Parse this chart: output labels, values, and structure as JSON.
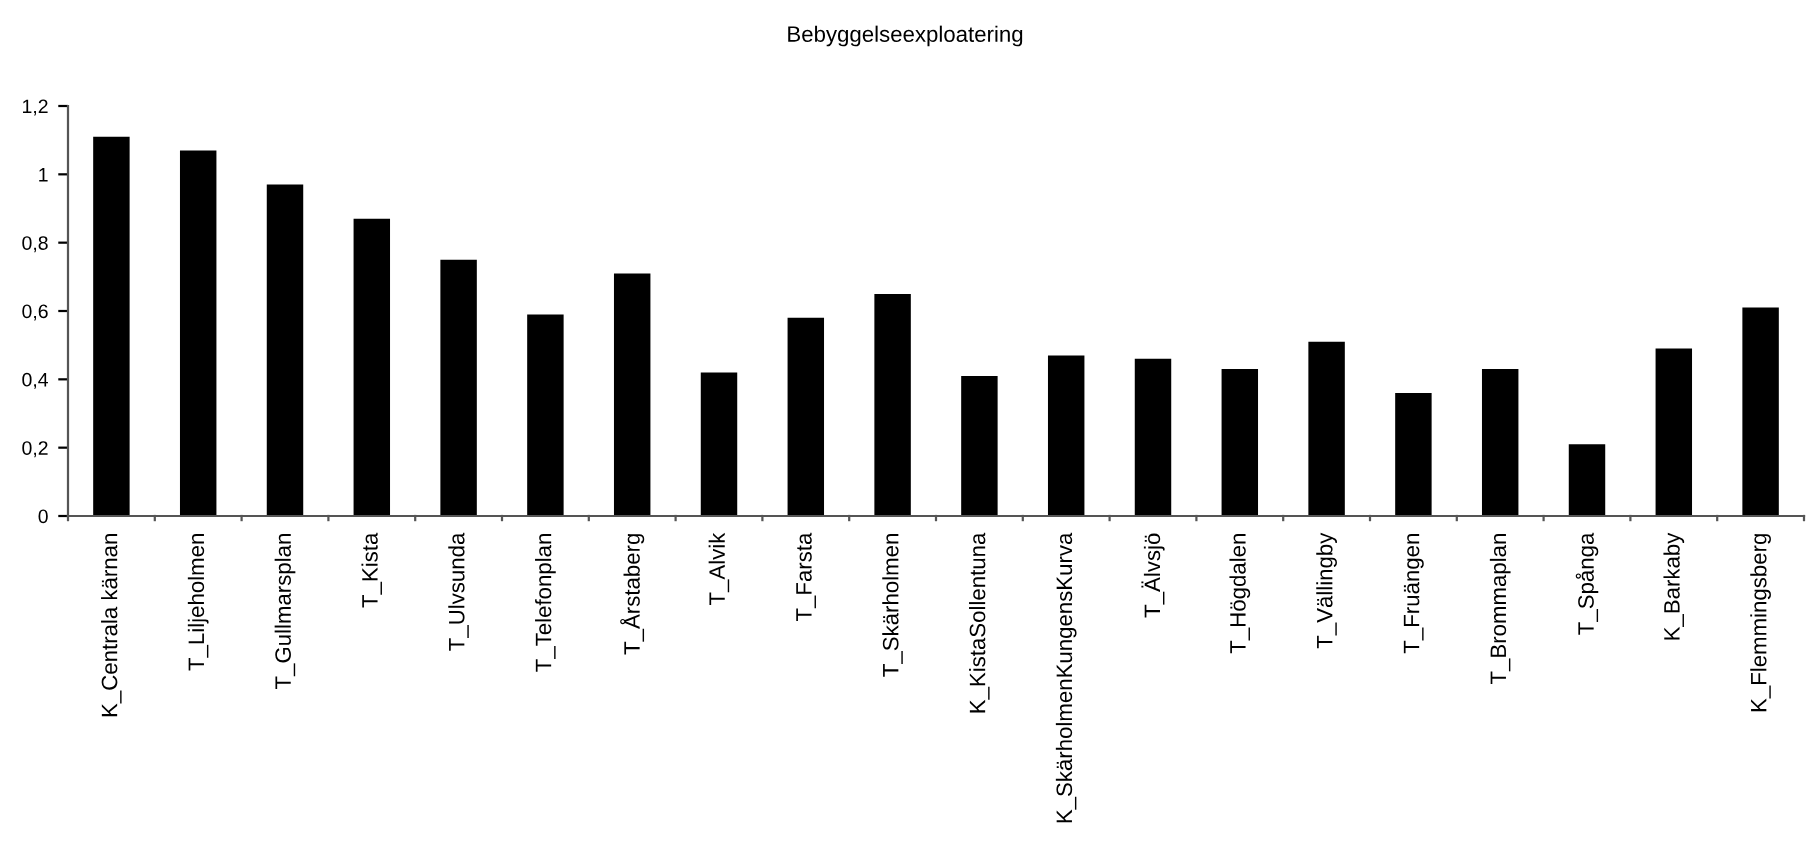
{
  "chart_data": {
    "type": "bar",
    "title": "Bebyggelseexploatering",
    "categories": [
      "K_Centrala kärnan",
      "T_Liljeholmen",
      "T_Gullmarsplan",
      "T_Kista",
      "T_Ulvsunda",
      "T_Telefonplan",
      "T_Årstaberg",
      "T_Alvik",
      "T_Farsta",
      "T_Skärholmen",
      "K_KistaSollentuna",
      "K_SkärholmenKungensKurva",
      "T_Älvsjö",
      "T_Högdalen",
      "T_Vällingby",
      "T_Fruängen",
      "T_Brommaplan",
      "T_Spånga",
      "K_Barkaby",
      "K_Flemmingsberg"
    ],
    "values": [
      1.11,
      1.07,
      0.97,
      0.87,
      0.75,
      0.59,
      0.71,
      0.42,
      0.58,
      0.65,
      0.41,
      0.47,
      0.46,
      0.43,
      0.51,
      0.36,
      0.43,
      0.21,
      0.49,
      0.61
    ],
    "color": "#000000",
    "ylim": [
      0,
      1.2
    ],
    "yticks": [
      {
        "value": 0,
        "label": "0"
      },
      {
        "value": 0.2,
        "label": "0,2"
      },
      {
        "value": 0.4,
        "label": "0,4"
      },
      {
        "value": 0.6,
        "label": "0,6"
      },
      {
        "value": 0.8,
        "label": "0,8"
      },
      {
        "value": 1,
        "label": "1"
      },
      {
        "value": 1.2,
        "label": "1,2"
      }
    ],
    "grid": false,
    "legend": false
  }
}
